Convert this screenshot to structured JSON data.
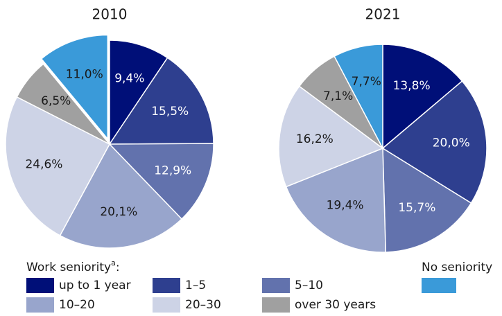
{
  "chart_data": [
    {
      "type": "pie",
      "title": "2010",
      "values": [
        9.4,
        15.5,
        12.9,
        20.1,
        24.6,
        6.5,
        11.0
      ],
      "value_labels": [
        "9,4%",
        "15,5%",
        "12,9%",
        "20,1%",
        "24,6%",
        "6,5%",
        "11,0%"
      ],
      "exploded_category": "No seniority"
    },
    {
      "type": "pie",
      "title": "2021",
      "values": [
        13.8,
        20.0,
        15.7,
        19.4,
        16.2,
        7.1,
        7.7
      ],
      "value_labels": [
        "13,8%",
        "20,0%",
        "15,7%",
        "19,4%",
        "16,2%",
        "7,1%",
        "7,7%"
      ]
    }
  ],
  "legend": {
    "title": "Work seniority",
    "title_note": "a",
    "title_suffix": ":",
    "categories": [
      "up to 1 year",
      "1–5",
      "5–10",
      "10–20",
      "20–30",
      "over 30 years",
      "No seniority"
    ],
    "colors": [
      "#000f78",
      "#2e3f8f",
      "#6272ad",
      "#98a5cc",
      "#cdd3e6",
      "#a0a0a0",
      "#3a9ad9"
    ]
  }
}
